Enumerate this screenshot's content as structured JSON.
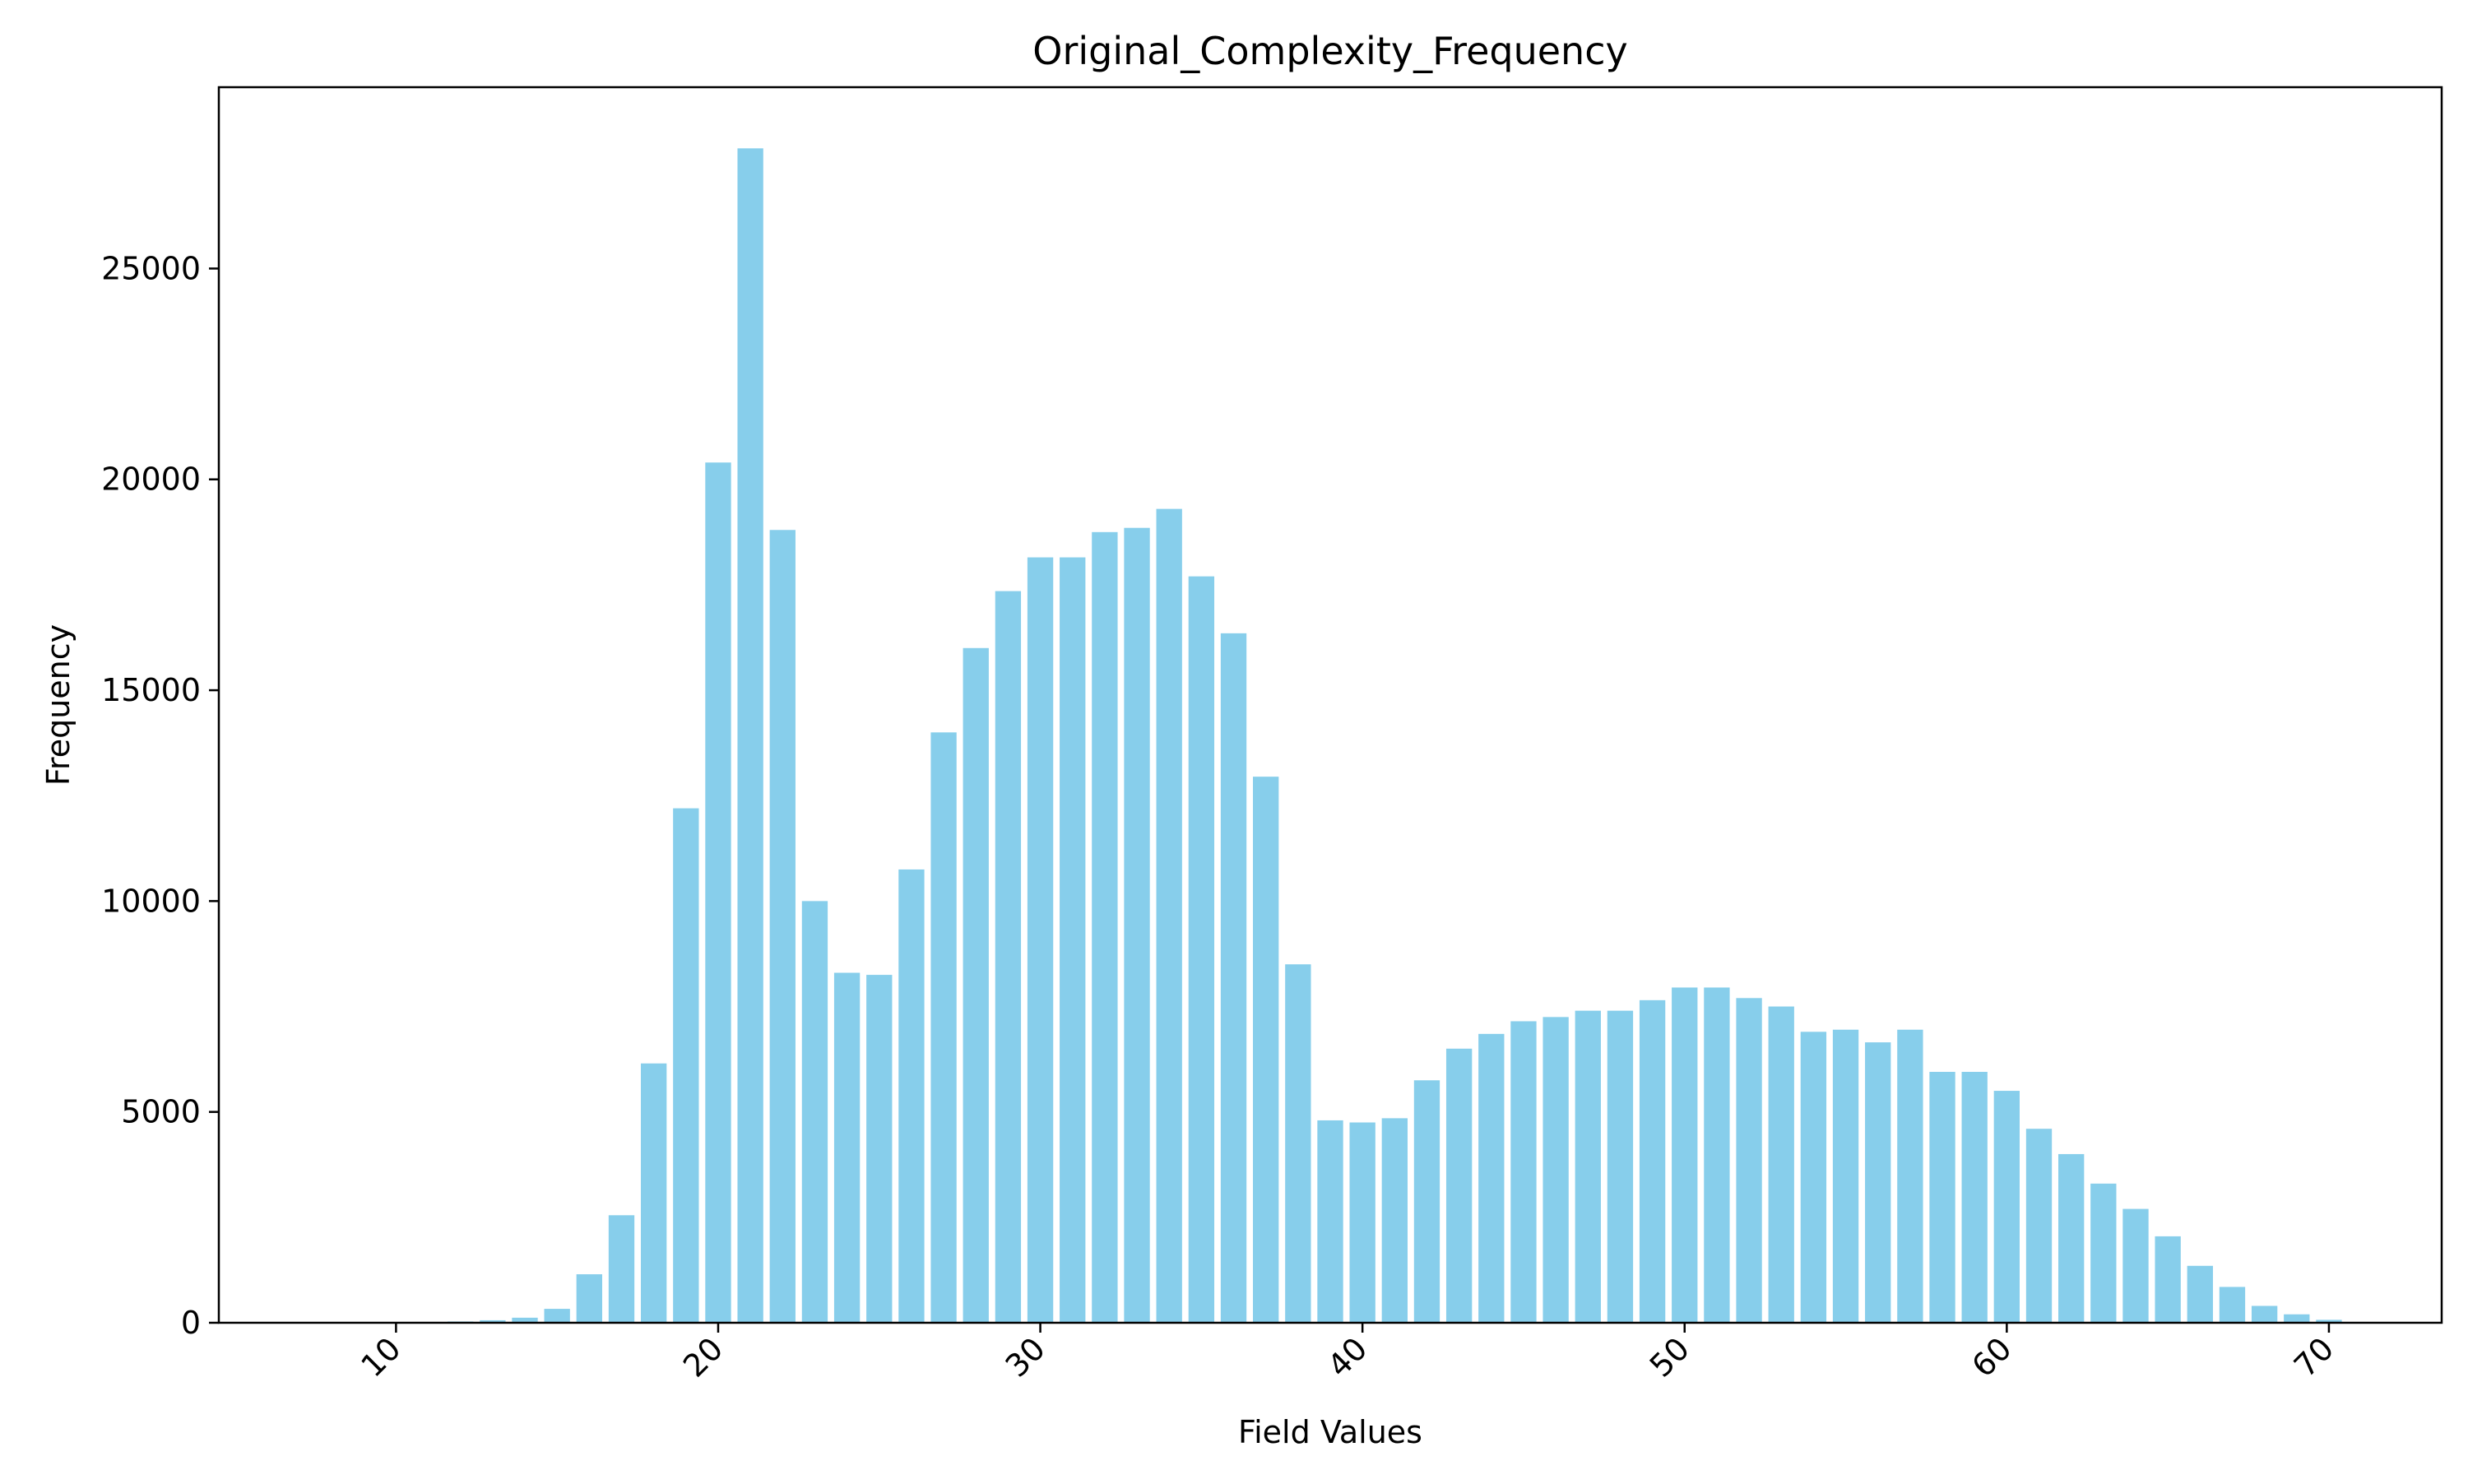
{
  "chart_data": {
    "type": "bar",
    "title": "Original_Complexity_Frequency",
    "xlabel": "Field Values",
    "ylabel": "Frequency",
    "x": [
      7,
      8,
      9,
      10,
      11,
      12,
      13,
      14,
      15,
      16,
      17,
      18,
      19,
      20,
      21,
      22,
      23,
      24,
      25,
      26,
      27,
      28,
      29,
      30,
      31,
      32,
      33,
      34,
      35,
      36,
      37,
      38,
      39,
      40,
      41,
      42,
      43,
      44,
      45,
      46,
      47,
      48,
      49,
      50,
      51,
      52,
      53,
      54,
      55,
      56,
      57,
      58,
      59,
      60,
      61,
      62,
      63,
      64,
      65,
      66,
      67,
      68,
      69,
      70
    ],
    "values": [
      0,
      0,
      5,
      10,
      20,
      30,
      60,
      120,
      330,
      1150,
      2550,
      6150,
      12200,
      20400,
      27850,
      18800,
      10000,
      8300,
      8250,
      10750,
      14000,
      16000,
      17350,
      18150,
      18150,
      18750,
      18850,
      19300,
      17700,
      16350,
      12950,
      8500,
      4800,
      4750,
      4850,
      5750,
      6500,
      6850,
      7150,
      7250,
      7400,
      7400,
      7650,
      7950,
      7950,
      7700,
      7500,
      6900,
      6950,
      6650,
      6950,
      5950,
      5950,
      5500,
      4600,
      4000,
      3300,
      2700,
      2050,
      1350,
      850,
      400,
      200,
      70
    ],
    "xlim": [
      4.5,
      73.5
    ],
    "ylim": [
      0,
      29300
    ],
    "xticks": [
      10,
      20,
      30,
      40,
      50,
      60,
      70
    ],
    "yticks": [
      0,
      5000,
      10000,
      15000,
      20000,
      25000
    ],
    "bar_color": "#87ceeb",
    "grid": false,
    "xtick_rotation": "45"
  }
}
